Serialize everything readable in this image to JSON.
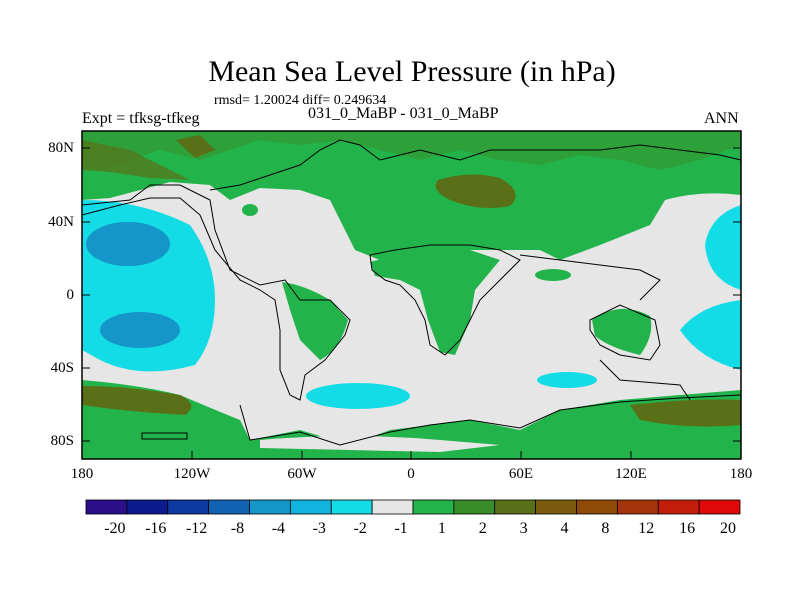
{
  "title": "Mean Sea Level Pressure (in hPa)",
  "stats": "rmsd= 1.20024 diff= 0.249634",
  "experiment": "Expt = tfksg-tfkeg",
  "period": "031_0_MaBP - 031_0_MaBP",
  "season": "ANN",
  "axes": {
    "y_ticks": [
      "80N",
      "40N",
      "0",
      "40S",
      "80S"
    ],
    "x_ticks": [
      "180",
      "120W",
      "60W",
      "0",
      "60E",
      "120E",
      "180"
    ]
  },
  "colorbar": {
    "labels": [
      "-20",
      "-16",
      "-12",
      "-8",
      "-4",
      "-3",
      "-2",
      "-1",
      "1",
      "2",
      "3",
      "4",
      "8",
      "12",
      "16",
      "20"
    ],
    "colors": [
      "#2a0e8a",
      "#0c1c8e",
      "#0c3aa0",
      "#1262b4",
      "#1496c8",
      "#10b4dc",
      "#14dce6",
      "#e6e6e6",
      "#22b44a",
      "#3a8c2a",
      "#5a7018",
      "#7a5a0c",
      "#904a08",
      "#a6340a",
      "#c41e0a",
      "#e00a0a"
    ]
  },
  "map_colors": {
    "background": "#e6e6e6",
    "green": "#22b44a",
    "dark_green": "#5a7018",
    "light_blue": "#14dce6",
    "blue": "#1496c8"
  }
}
